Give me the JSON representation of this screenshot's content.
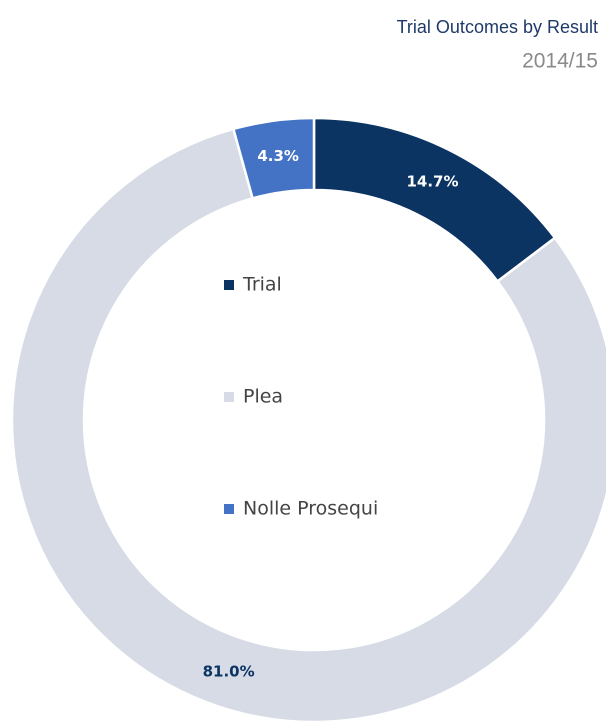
{
  "chart_data": {
    "type": "donut",
    "title": "Trial Outcomes by Result",
    "subtitle": "2014/15",
    "categories": [
      "Trial",
      "Plea",
      "Nolle Prosequi"
    ],
    "values": [
      14.7,
      81.0,
      4.3
    ],
    "value_labels": [
      "14.7%",
      "81.0%",
      "4.3%"
    ],
    "colors": [
      "#0b3463",
      "#d6dbe6",
      "#4472c4"
    ],
    "legend": "center"
  }
}
